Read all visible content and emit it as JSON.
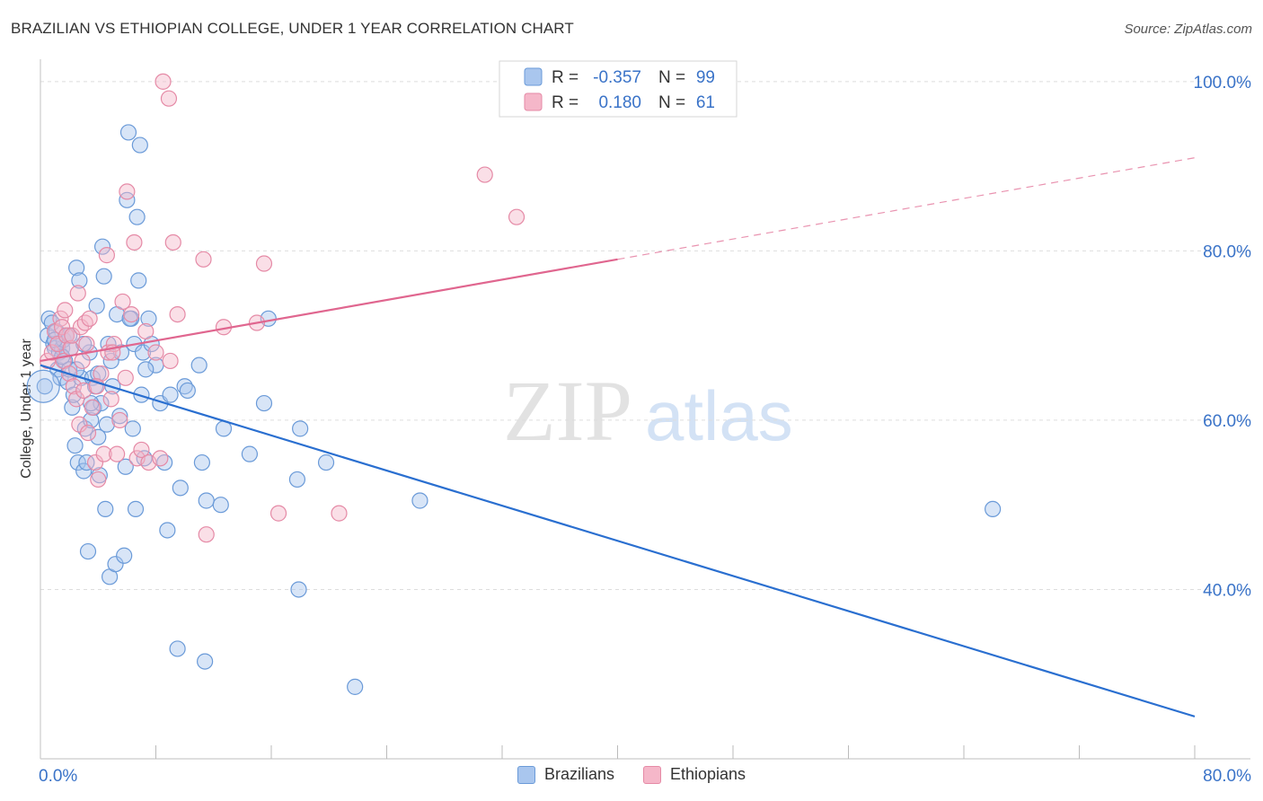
{
  "header": {
    "title": "BRAZILIAN VS ETHIOPIAN COLLEGE, UNDER 1 YEAR CORRELATION CHART",
    "source": "Source: ZipAtlas.com"
  },
  "watermark": {
    "zip": "ZIP",
    "atlas": "atlas"
  },
  "colors": {
    "blue_fill": "#a9c6ee",
    "blue_stroke": "#6a9ad8",
    "blue_line": "#2a6fd0",
    "pink_fill": "#f5b7c9",
    "pink_stroke": "#e58aa6",
    "pink_line": "#e0668f",
    "axis_text": "#3a73c8",
    "grid": "#dddddd"
  },
  "stats_legend": [
    {
      "r_label": "R =",
      "r_value": "-0.357",
      "n_label": "N =",
      "n_value": "99"
    },
    {
      "r_label": "R =",
      "r_value": " 0.180",
      "n_label": "N =",
      "n_value": "61"
    }
  ],
  "chart_data": {
    "type": "scatter",
    "title": "BRAZILIAN VS ETHIOPIAN COLLEGE, UNDER 1 YEAR CORRELATION CHART",
    "xlabel": "",
    "ylabel": "College, Under 1 year",
    "xlim": [
      0,
      80
    ],
    "ylim": [
      20,
      102
    ],
    "x_tick_labels": [
      "0.0%",
      "80.0%"
    ],
    "y_ticks": [
      40,
      60,
      80,
      100
    ],
    "y_tick_labels": [
      "40.0%",
      "60.0%",
      "80.0%",
      "100.0%"
    ],
    "grid": true,
    "legend_position": "bottom-center",
    "series": [
      {
        "name": "Brazilians",
        "color": "#6a9ad8",
        "trend": {
          "x": [
            0,
            80
          ],
          "y": [
            66.5,
            25.0
          ],
          "style": "solid"
        },
        "points": [
          [
            0.3,
            64
          ],
          [
            0.5,
            70
          ],
          [
            0.6,
            72
          ],
          [
            0.8,
            71.5
          ],
          [
            0.9,
            69
          ],
          [
            1.0,
            68.5
          ],
          [
            1.1,
            70.5
          ],
          [
            1.2,
            66
          ],
          [
            1.3,
            68
          ],
          [
            1.4,
            65
          ],
          [
            1.5,
            68.5
          ],
          [
            1.6,
            69.5
          ],
          [
            1.7,
            67
          ],
          [
            1.8,
            70
          ],
          [
            1.9,
            64.5
          ],
          [
            2.0,
            66
          ],
          [
            2.1,
            68.5
          ],
          [
            2.2,
            61.5
          ],
          [
            2.3,
            63
          ],
          [
            2.4,
            57
          ],
          [
            2.5,
            78
          ],
          [
            2.6,
            55
          ],
          [
            2.7,
            76.5
          ],
          [
            2.8,
            65
          ],
          [
            3.0,
            54
          ],
          [
            3.1,
            59
          ],
          [
            3.2,
            55
          ],
          [
            3.3,
            44.5
          ],
          [
            3.4,
            68
          ],
          [
            3.5,
            60
          ],
          [
            3.6,
            65
          ],
          [
            3.7,
            61.5
          ],
          [
            3.8,
            64
          ],
          [
            3.9,
            73.5
          ],
          [
            4.0,
            58
          ],
          [
            4.1,
            53.5
          ],
          [
            4.2,
            62
          ],
          [
            4.3,
            80.5
          ],
          [
            4.4,
            77
          ],
          [
            4.5,
            49.5
          ],
          [
            4.6,
            59.5
          ],
          [
            4.7,
            69
          ],
          [
            4.8,
            41.5
          ],
          [
            4.9,
            67
          ],
          [
            5.0,
            64
          ],
          [
            5.2,
            43
          ],
          [
            5.3,
            72.5
          ],
          [
            5.5,
            60.5
          ],
          [
            5.6,
            68
          ],
          [
            5.8,
            44
          ],
          [
            5.9,
            54.5
          ],
          [
            6.0,
            86
          ],
          [
            6.1,
            94
          ],
          [
            6.3,
            72
          ],
          [
            6.4,
            59
          ],
          [
            6.5,
            69
          ],
          [
            6.6,
            49.5
          ],
          [
            6.7,
            84
          ],
          [
            6.8,
            76.5
          ],
          [
            6.9,
            92.5
          ],
          [
            7.0,
            63
          ],
          [
            7.1,
            68
          ],
          [
            7.2,
            55.5
          ],
          [
            7.5,
            72
          ],
          [
            7.7,
            69
          ],
          [
            8.0,
            66.5
          ],
          [
            8.3,
            62
          ],
          [
            8.6,
            55
          ],
          [
            8.8,
            47
          ],
          [
            9.0,
            63
          ],
          [
            9.5,
            33
          ],
          [
            9.7,
            52
          ],
          [
            10.0,
            64
          ],
          [
            10.2,
            63.5
          ],
          [
            11.0,
            66.5
          ],
          [
            11.2,
            55
          ],
          [
            11.4,
            31.5
          ],
          [
            11.5,
            50.5
          ],
          [
            12.5,
            50
          ],
          [
            12.7,
            59
          ],
          [
            14.5,
            56
          ],
          [
            15.5,
            62
          ],
          [
            15.8,
            72
          ],
          [
            17.8,
            53
          ],
          [
            17.9,
            40
          ],
          [
            18.0,
            59
          ],
          [
            19.8,
            55
          ],
          [
            21.8,
            28.5
          ],
          [
            26.3,
            50.5
          ],
          [
            66.0,
            49.5
          ],
          [
            1.0,
            69.5
          ],
          [
            1.5,
            67.5
          ],
          [
            2.0,
            70
          ],
          [
            2.5,
            66
          ],
          [
            3.0,
            69
          ],
          [
            3.5,
            62
          ],
          [
            4.0,
            65.5
          ],
          [
            6.2,
            72
          ],
          [
            7.3,
            66
          ]
        ]
      },
      {
        "name": "Ethiopians",
        "color": "#e58aa6",
        "trend": {
          "x": [
            0,
            40,
            80
          ],
          "y": [
            67.0,
            79.0,
            91.0
          ],
          "style": "solid-then-dashed"
        },
        "points": [
          [
            0.5,
            67
          ],
          [
            0.8,
            68
          ],
          [
            1.0,
            70.5
          ],
          [
            1.2,
            69
          ],
          [
            1.4,
            72
          ],
          [
            1.5,
            71
          ],
          [
            1.6,
            67
          ],
          [
            1.7,
            73
          ],
          [
            1.8,
            70
          ],
          [
            2.0,
            65.5
          ],
          [
            2.1,
            68.5
          ],
          [
            2.2,
            70
          ],
          [
            2.3,
            64
          ],
          [
            2.5,
            62.5
          ],
          [
            2.6,
            75
          ],
          [
            2.7,
            59.5
          ],
          [
            2.8,
            71
          ],
          [
            2.9,
            67
          ],
          [
            3.0,
            63.5
          ],
          [
            3.1,
            71.5
          ],
          [
            3.2,
            69
          ],
          [
            3.3,
            58.5
          ],
          [
            3.4,
            72
          ],
          [
            3.6,
            61.5
          ],
          [
            3.8,
            55
          ],
          [
            4.0,
            53
          ],
          [
            4.2,
            65.5
          ],
          [
            4.4,
            56
          ],
          [
            4.6,
            79.5
          ],
          [
            4.7,
            68
          ],
          [
            4.9,
            62.5
          ],
          [
            5.1,
            69
          ],
          [
            5.3,
            56
          ],
          [
            5.5,
            60
          ],
          [
            5.7,
            74
          ],
          [
            5.9,
            65
          ],
          [
            6.0,
            87
          ],
          [
            6.3,
            72.5
          ],
          [
            6.5,
            81
          ],
          [
            6.7,
            55.5
          ],
          [
            7.0,
            56.5
          ],
          [
            7.3,
            70.5
          ],
          [
            7.5,
            55
          ],
          [
            8.0,
            68
          ],
          [
            8.3,
            55.5
          ],
          [
            8.5,
            100
          ],
          [
            8.9,
            98
          ],
          [
            9.2,
            81
          ],
          [
            9.5,
            72.5
          ],
          [
            9.0,
            67
          ],
          [
            11.5,
            46.5
          ],
          [
            11.3,
            79
          ],
          [
            12.7,
            71
          ],
          [
            15.0,
            71.5
          ],
          [
            15.5,
            78.5
          ],
          [
            16.5,
            49
          ],
          [
            20.7,
            49
          ],
          [
            30.8,
            89
          ],
          [
            33.0,
            84
          ],
          [
            5.0,
            68
          ],
          [
            3.9,
            64
          ]
        ]
      }
    ]
  }
}
